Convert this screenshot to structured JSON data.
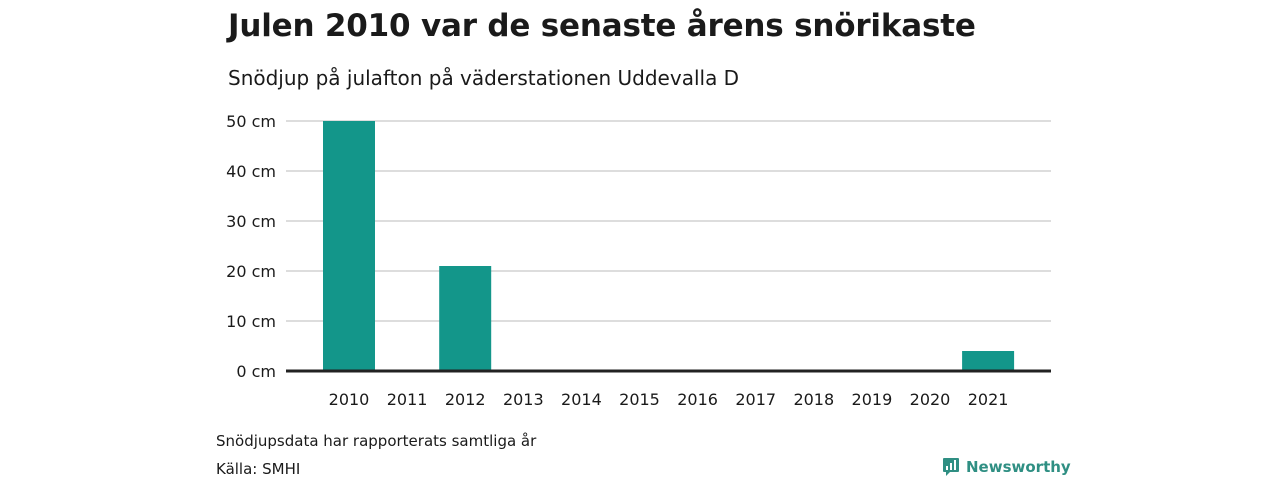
{
  "title": "Julen 2010 var de senaste årens snörikaste",
  "subtitle": "Snödjup på julafton på väderstationen Uddevalla D",
  "note": "Snödjupsdata har rapporterats samtliga år",
  "source": "Källa: SMHI",
  "brand": {
    "name": "Newsworthy",
    "icon": "newsworthy-logo-icon"
  },
  "colors": {
    "bar": "#13968a",
    "grid": "#dddddd",
    "axis": "#222222",
    "brand": "#2f8f83"
  },
  "chart_data": {
    "type": "bar",
    "categories": [
      "2010",
      "2011",
      "2012",
      "2013",
      "2014",
      "2015",
      "2016",
      "2017",
      "2018",
      "2019",
      "2020",
      "2021"
    ],
    "values": [
      50,
      0,
      21,
      0,
      0,
      0,
      0,
      0,
      0,
      0,
      0,
      4
    ],
    "y_ticks": [
      0,
      10,
      20,
      30,
      40,
      50
    ],
    "y_tick_labels": [
      "0 cm",
      "10 cm",
      "20 cm",
      "30 cm",
      "40 cm",
      "50 cm"
    ],
    "ylim": [
      0,
      50
    ],
    "grid": true,
    "legend": "none"
  }
}
